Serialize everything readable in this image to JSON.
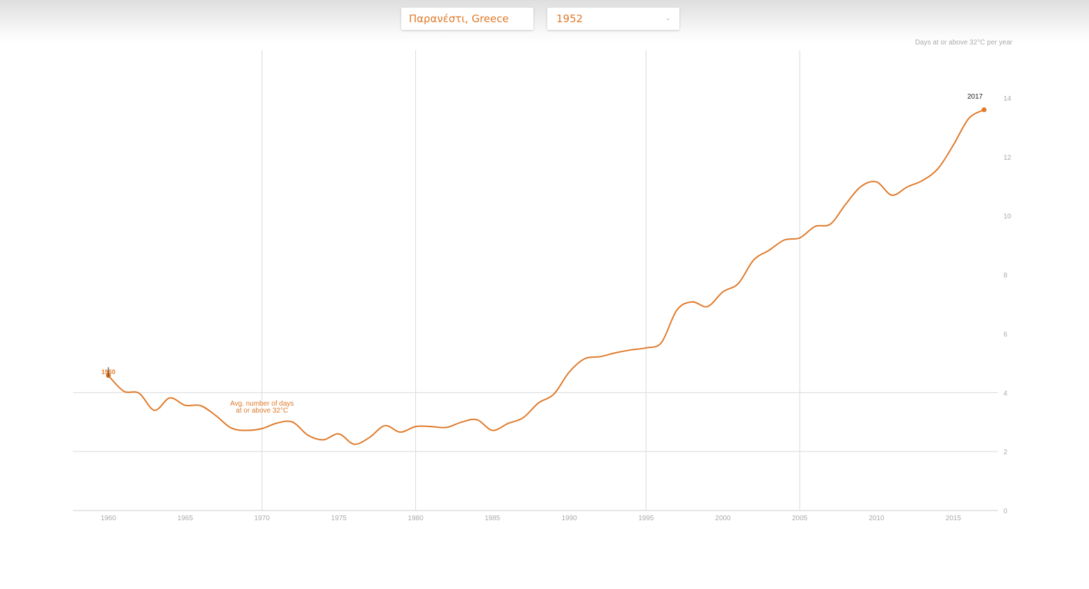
{
  "controls": {
    "location": "Παρανέστι, Greece",
    "year": "1952"
  },
  "colors": {
    "line": "#e07a2a",
    "grid": "#d9d9d9",
    "tick": "#aaaaaa"
  },
  "chart_data": {
    "type": "line",
    "title": "",
    "ylabel": "Days at or above 32°C per year",
    "xlim": [
      1957.7,
      2017.9
    ],
    "ylim": [
      0,
      14
    ],
    "x_ticks": [
      1960,
      1965,
      1970,
      1975,
      1980,
      1985,
      1990,
      1995,
      2000,
      2005,
      2010,
      2015
    ],
    "y_ticks": [
      0,
      2,
      4,
      6,
      8,
      10,
      12,
      14
    ],
    "x_gridlines": [
      1970,
      1980,
      1995,
      2005
    ],
    "y_gridlines": [
      2,
      4
    ],
    "annotation": [
      "Avg. number of days",
      "at or above 32°C"
    ],
    "start_label": "1960",
    "end_label": "2017",
    "series": [
      {
        "x": [
          1960,
          1961,
          1962,
          1963,
          1964,
          1965,
          1966,
          1967,
          1968,
          1969,
          1970,
          1971,
          1972,
          1973,
          1974,
          1975,
          1976,
          1977,
          1978,
          1979,
          1980,
          1981,
          1982,
          1983,
          1984,
          1985,
          1986,
          1987,
          1988,
          1989,
          1990,
          1991,
          1992,
          1993,
          1994,
          1995,
          1996,
          1997,
          1998,
          1999,
          2000,
          2001,
          2002,
          2003,
          2004,
          2005,
          2006,
          2007,
          2008,
          2009,
          2010,
          2011,
          2012,
          2013,
          2014,
          2015,
          2016,
          2017
        ],
        "y": [
          4.58,
          4.05,
          3.98,
          3.4,
          3.82,
          3.57,
          3.56,
          3.22,
          2.8,
          2.72,
          2.78,
          2.97,
          3.0,
          2.55,
          2.4,
          2.6,
          2.25,
          2.48,
          2.88,
          2.66,
          2.85,
          2.85,
          2.82,
          3.0,
          3.08,
          2.72,
          2.95,
          3.15,
          3.65,
          3.95,
          4.7,
          5.15,
          5.22,
          5.35,
          5.45,
          5.52,
          5.7,
          6.8,
          7.08,
          6.92,
          7.42,
          7.7,
          8.5,
          8.83,
          9.18,
          9.25,
          9.64,
          9.72,
          10.4,
          11.0,
          11.15,
          10.7,
          10.98,
          11.2,
          11.6,
          12.4,
          13.3,
          13.6
        ]
      }
    ]
  }
}
